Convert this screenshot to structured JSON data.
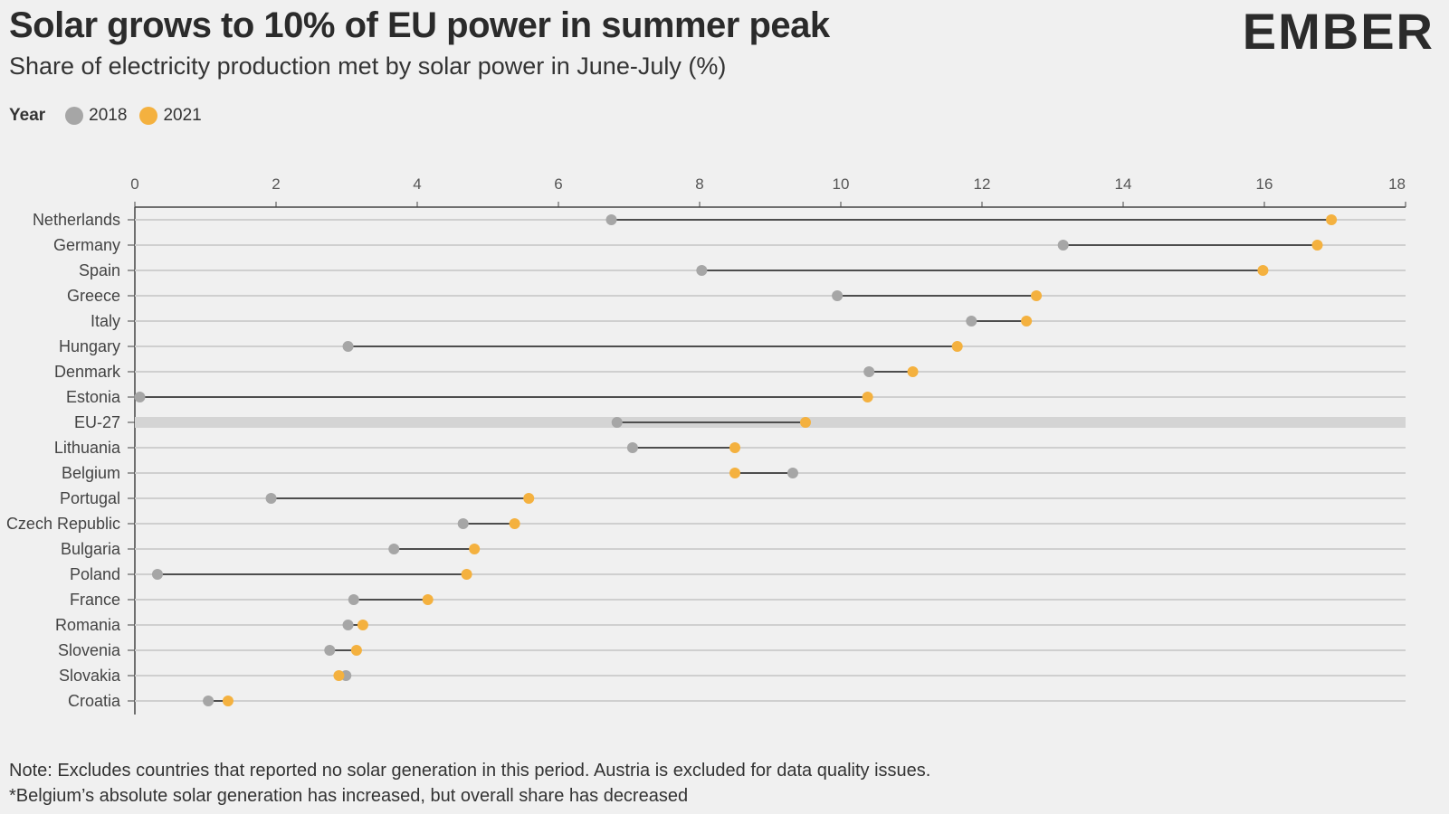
{
  "header": {
    "title": "Solar grows to 10% of EU power in summer peak",
    "subtitle": "Share of electricity production met by solar power in June-July (%)",
    "brand": "EMBER"
  },
  "legend": {
    "title": "Year",
    "items": [
      {
        "label": "2018",
        "color": "#a6a6a6"
      },
      {
        "label": "2021",
        "color": "#f4b13f"
      }
    ]
  },
  "colors": {
    "y2018": "#a6a6a6",
    "y2021": "#f4b13f",
    "brand_dark": "#2b2b2b",
    "brand_green": "#2ed381",
    "highlight_band": "#d4d4d4"
  },
  "chart_data": {
    "type": "dumbbell",
    "xlim": [
      0,
      18
    ],
    "xticks": [
      0,
      2,
      4,
      6,
      8,
      10,
      12,
      14,
      16,
      18
    ],
    "categories": [
      "Netherlands",
      "Germany",
      "Spain",
      "Greece",
      "Italy",
      "Hungary",
      "Denmark",
      "Estonia",
      "EU-27",
      "Lithuania",
      "Belgium",
      "Portugal",
      "Czech Republic",
      "Bulgaria",
      "Poland",
      "France",
      "Romania",
      "Slovenia",
      "Slovakia",
      "Croatia"
    ],
    "highlight": "EU-27",
    "series": [
      {
        "name": "2018",
        "values": [
          6.75,
          13.15,
          8.03,
          9.95,
          11.85,
          3.02,
          10.4,
          0.07,
          6.83,
          7.05,
          9.32,
          1.93,
          4.65,
          3.67,
          0.32,
          3.1,
          3.02,
          2.76,
          2.99,
          1.04
        ]
      },
      {
        "name": "2021",
        "values": [
          16.95,
          16.75,
          15.98,
          12.77,
          12.63,
          11.65,
          11.02,
          10.38,
          9.5,
          8.5,
          8.5,
          5.58,
          5.38,
          4.81,
          4.7,
          4.15,
          3.23,
          3.14,
          2.89,
          1.32
        ]
      }
    ]
  },
  "notes": {
    "line1": "Note: Excludes countries that reported no solar generation in this period. Austria is excluded for data quality issues.",
    "line2": "*Belgium’s absolute solar generation has increased, but overall share has decreased"
  }
}
